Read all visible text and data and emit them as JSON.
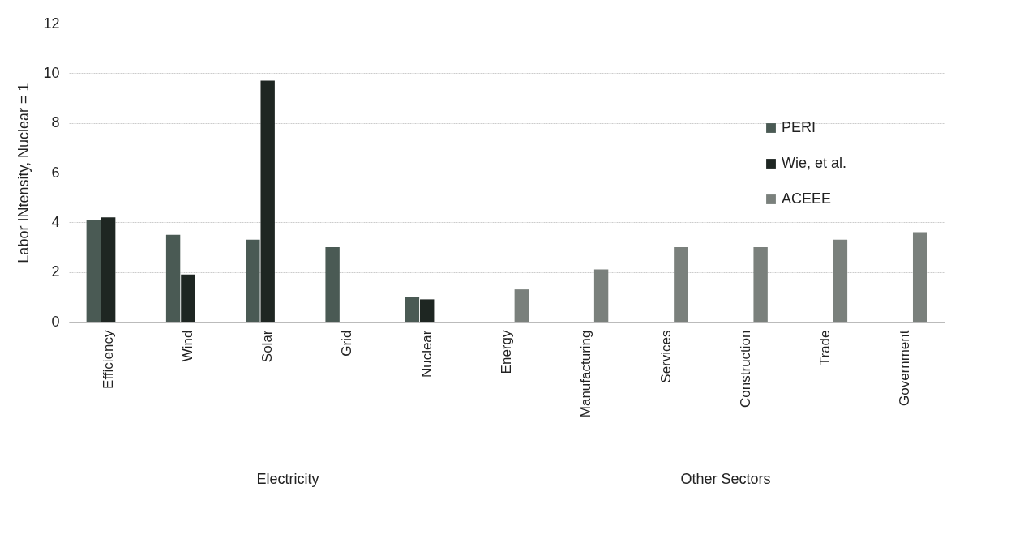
{
  "chart_data": {
    "type": "bar",
    "ylabel": "Labor INtensity, Nuclear = 1",
    "categories": [
      "Efficiency",
      "Wind",
      "Solar",
      "Grid",
      "Nuclear",
      "Energy",
      "Manufacturing",
      "Services",
      "Construction",
      "Trade",
      "Government"
    ],
    "series": [
      {
        "name": "PERI",
        "color": "#4a5a54",
        "values": [
          4.1,
          3.5,
          3.3,
          3.0,
          1.0,
          null,
          null,
          null,
          null,
          null,
          null
        ]
      },
      {
        "name": "Wie, et al.",
        "color": "#1e2622",
        "values": [
          4.2,
          1.9,
          9.7,
          null,
          0.9,
          null,
          null,
          null,
          null,
          null,
          null
        ]
      },
      {
        "name": "ACEEE",
        "color": "#7a807c",
        "values": [
          null,
          null,
          null,
          null,
          null,
          1.3,
          2.1,
          3.0,
          3.0,
          3.3,
          3.6
        ]
      }
    ],
    "ylim": [
      0,
      12
    ],
    "yticks": [
      0,
      2,
      4,
      6,
      8,
      10,
      12
    ],
    "grid": "y",
    "legend": "top right",
    "annotations": [
      "Electricity",
      "Other Sectors"
    ]
  }
}
